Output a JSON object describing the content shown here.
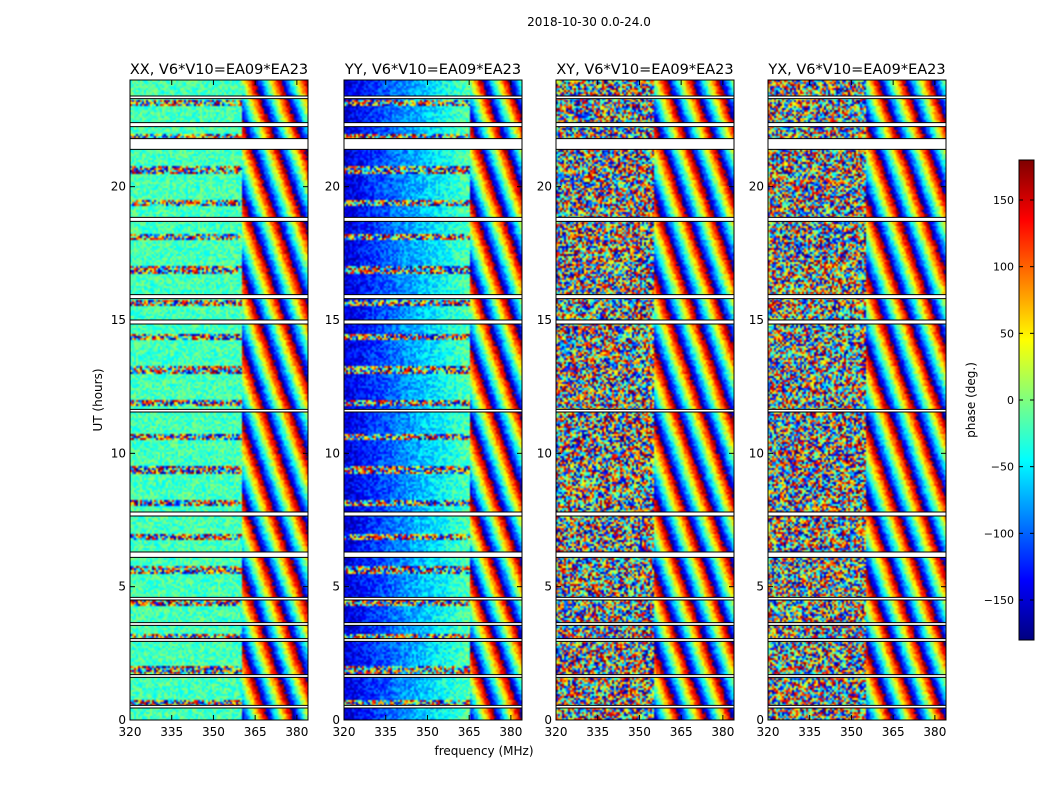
{
  "chart_data": {
    "type": "heatmap",
    "suptitle": "2018-10-30 0.0-24.0",
    "xlabel": "frequency (MHz)",
    "ylabel": "UT (hours)",
    "xlim": [
      320,
      384
    ],
    "ylim": [
      0,
      24
    ],
    "xticks": [
      "320",
      "335",
      "350",
      "365",
      "380"
    ],
    "yticks": [
      "0",
      "5",
      "10",
      "15",
      "20"
    ],
    "colorbar": {
      "label": "phase (deg.)",
      "range": [
        -180,
        180
      ],
      "ticks": [
        "−150",
        "−100",
        "−50",
        "0",
        "50",
        "100",
        "150"
      ],
      "tick_values": [
        -150,
        -100,
        -50,
        0,
        50,
        100,
        150
      ],
      "colormap": "jet",
      "colors": [
        "#00007f",
        "#0000ff",
        "#007fff",
        "#00ffff",
        "#7fff7f",
        "#ffff00",
        "#ff7f00",
        "#ff0000",
        "#7f0000"
      ]
    },
    "panels": [
      {
        "title": "XX, V6*V10=EA09*EA23",
        "coherent_band_MHz": [
          320,
          360
        ],
        "coherent_phase_deg": -20,
        "fringe_start_MHz": 360
      },
      {
        "title": "YY, V6*V10=EA09*EA23",
        "coherent_band_MHz": [
          320,
          365
        ],
        "coherent_phase_deg": -150,
        "fringe_start_MHz": 365
      },
      {
        "title": "XY, V6*V10=EA09*EA23",
        "coherent_band_MHz": null,
        "coherent_phase_deg": null,
        "fringe_start_MHz": 355
      },
      {
        "title": "YX, V6*V10=EA09*EA23",
        "coherent_band_MHz": null,
        "coherent_phase_deg": null,
        "fringe_start_MHz": 355
      }
    ],
    "flagged_gaps_UT": [
      [
        0.45,
        0.55
      ],
      [
        1.6,
        1.7
      ],
      [
        2.95,
        3.05
      ],
      [
        3.55,
        3.65
      ],
      [
        4.5,
        4.6
      ],
      [
        6.1,
        6.3
      ],
      [
        7.65,
        7.8
      ],
      [
        11.55,
        11.65
      ],
      [
        14.85,
        15.0
      ],
      [
        15.8,
        15.95
      ],
      [
        18.7,
        18.85
      ],
      [
        21.4,
        21.8
      ],
      [
        22.25,
        22.4
      ],
      [
        23.3,
        23.4
      ]
    ]
  }
}
